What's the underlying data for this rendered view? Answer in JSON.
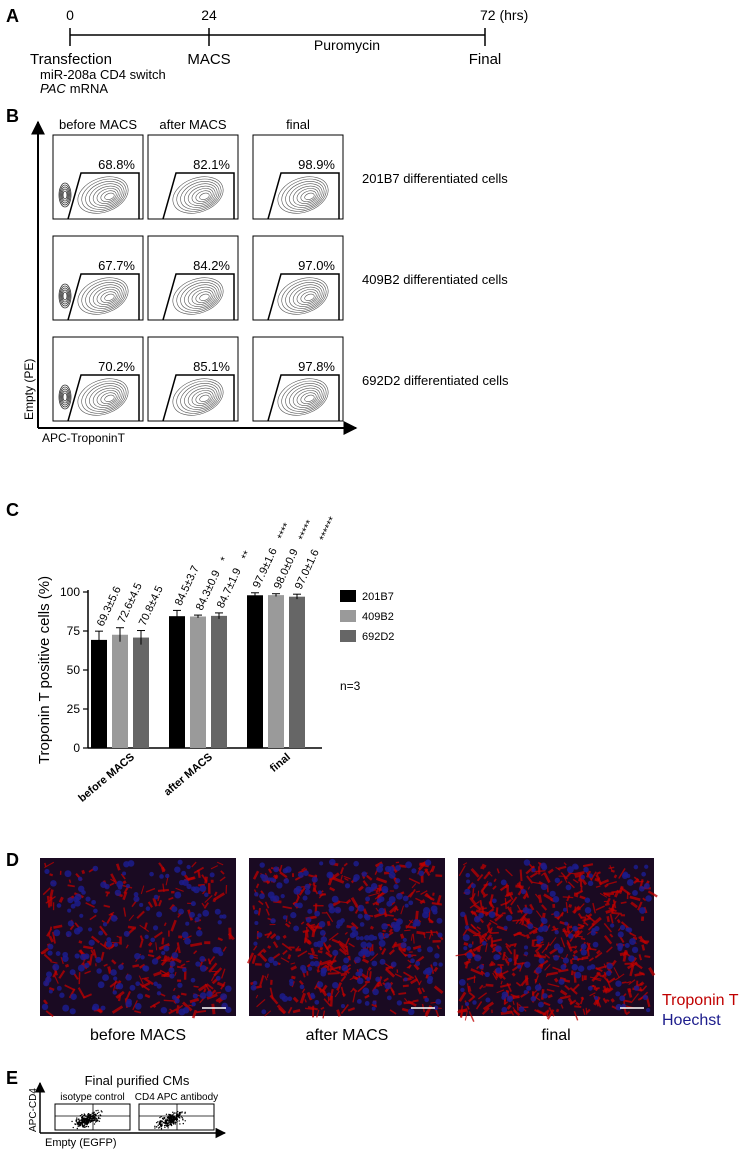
{
  "panel_a": {
    "label": "A",
    "tick_labels": [
      "0",
      "24",
      "72 (hrs)"
    ],
    "events": [
      "Transfection",
      "MACS",
      "Final"
    ],
    "treatment": "Puromycin",
    "transfection_construct": "miR-208a CD4 switch",
    "transfection_mrna": {
      "gene": "PAC",
      "text": "mRNA"
    }
  },
  "panel_b": {
    "label": "B",
    "columns": [
      "before MACS",
      "after MACS",
      "final"
    ],
    "rows": [
      "201B7 differentiated cells",
      "409B2 differentiated cells",
      "692D2 differentiated cells"
    ],
    "percentages": [
      [
        "68.8%",
        "82.1%",
        "98.9%"
      ],
      [
        "67.7%",
        "84.2%",
        "97.0%"
      ],
      [
        "70.2%",
        "85.1%",
        "97.8%"
      ]
    ],
    "y_axis_label": "Empty (PE)",
    "x_axis_label": "APC-TroponinT"
  },
  "chart_data": {
    "type": "bar",
    "panel_label": "C",
    "ylabel": "Troponin T positive cells (%)",
    "categories": [
      "before MACS",
      "after MACS",
      "final"
    ],
    "series": [
      {
        "name": "201B7",
        "color": "#000000",
        "values": [
          69.3,
          84.5,
          97.9
        ],
        "errors": [
          5.6,
          3.7,
          1.6
        ],
        "value_labels": [
          "69.3±5.6",
          "84.5±3.7",
          "97.9±1.6"
        ],
        "significance": [
          null,
          null,
          "****"
        ]
      },
      {
        "name": "409B2",
        "color": "#9a9a9a",
        "values": [
          72.6,
          84.3,
          98.0
        ],
        "errors": [
          4.5,
          0.9,
          0.9
        ],
        "value_labels": [
          "72.6±4.5",
          "84.3±0.9",
          "98.0±0.9"
        ],
        "significance": [
          null,
          "*",
          "*****"
        ]
      },
      {
        "name": "692D2",
        "color": "#666666",
        "values": [
          70.8,
          84.7,
          97.0
        ],
        "errors": [
          4.5,
          1.9,
          1.6
        ],
        "value_labels": [
          "70.8±4.5",
          "84.7±1.9",
          "97.0±1.6"
        ],
        "significance": [
          null,
          "**",
          "******"
        ]
      }
    ],
    "ylim": [
      0,
      100
    ],
    "yticks": [
      0,
      25,
      50,
      75,
      100
    ],
    "legend": "right",
    "note": "n=3"
  },
  "panel_d": {
    "label": "D",
    "captions": [
      "before MACS",
      "after MACS",
      "final"
    ],
    "legend": [
      {
        "name": "Troponin T",
        "color": "#c00000"
      },
      {
        "name": "Hoechst",
        "color": "#1c1c8c"
      }
    ]
  },
  "panel_e": {
    "label": "E",
    "title": "Final purified CMs",
    "captions": [
      "isotype control",
      "CD4 APC antibody"
    ],
    "y_axis_label": "APC-CD4",
    "x_axis_label": "Empty (EGFP)"
  }
}
